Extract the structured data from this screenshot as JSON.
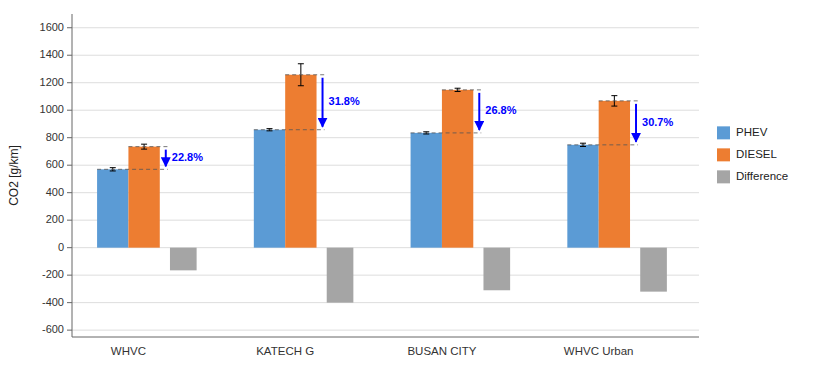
{
  "chart_data": {
    "type": "bar",
    "ylabel": "CO2 [g/km]",
    "categories": [
      "WHVC",
      "KATECH G",
      "BUSAN CITY",
      "WHVC Urban"
    ],
    "series": [
      {
        "name": "PHEV",
        "color": "#5B9BD5",
        "values": [
          570,
          858,
          835,
          748
        ],
        "errors": [
          12,
          8,
          8,
          12
        ]
      },
      {
        "name": "DIESEL",
        "color": "#ED7D31",
        "values": [
          735,
          1258,
          1148,
          1068
        ],
        "errors": [
          18,
          80,
          12,
          38
        ]
      },
      {
        "name": "Difference",
        "color": "#A5A5A5",
        "values": [
          -165,
          -400,
          -310,
          -320
        ]
      }
    ],
    "annotations": [
      {
        "text": "22.8%",
        "color": "#0000FF"
      },
      {
        "text": "31.8%",
        "color": "#0000FF"
      },
      {
        "text": "26.8%",
        "color": "#0000FF"
      },
      {
        "text": "30.7%",
        "color": "#0000FF"
      }
    ],
    "ylim": [
      -650,
      1700
    ],
    "yticks": [
      -600,
      -400,
      -200,
      0,
      200,
      400,
      600,
      800,
      1000,
      1200,
      1400,
      1600
    ],
    "grid": true,
    "legend": "right"
  }
}
